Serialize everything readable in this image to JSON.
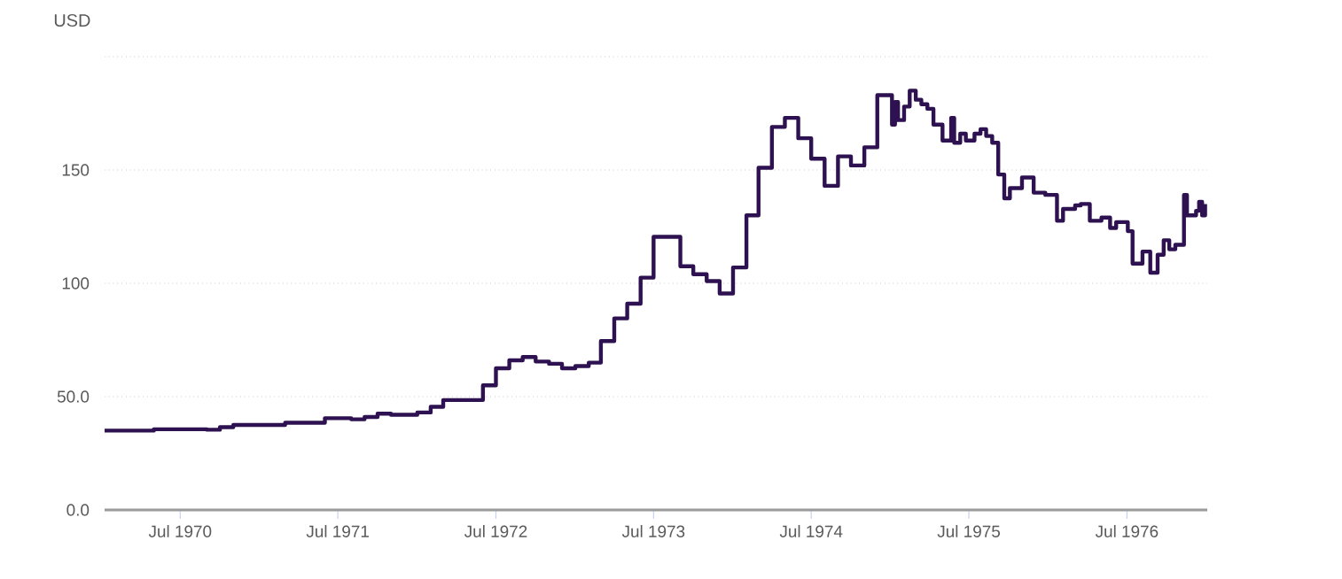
{
  "chart_data": {
    "type": "step",
    "ylabel": "USD",
    "color": "#2d1150",
    "x": [
      "1970-01-07",
      "1970-05-01",
      "1970-09-01",
      "1970-10-01",
      "1970-11-01",
      "1971-03-01",
      "1971-06-01",
      "1971-08-01",
      "1971-09-01",
      "1971-10-01",
      "1971-11-01",
      "1972-01-01",
      "1972-02-01",
      "1972-03-01",
      "1972-06-01",
      "1972-07-01",
      "1972-08-01",
      "1972-09-01",
      "1972-10-01",
      "1972-11-01",
      "1972-12-01",
      "1973-01-01",
      "1973-02-01",
      "1973-03-01",
      "1973-04-01",
      "1973-05-01",
      "1973-06-01",
      "1973-07-01",
      "1973-09-01",
      "1973-10-01",
      "1973-11-01",
      "1973-12-01",
      "1974-01-01",
      "1974-02-01",
      "1974-03-01",
      "1974-04-01",
      "1974-05-01",
      "1974-06-01",
      "1974-07-01",
      "1974-08-01",
      "1974-09-01",
      "1974-10-01",
      "1974-11-01",
      "1974-12-01",
      "1975-01-04",
      "1975-01-11",
      "1975-01-18",
      "1975-02-01",
      "1975-02-14",
      "1975-02-28",
      "1975-03-13",
      "1975-03-27",
      "1975-04-10",
      "1975-05-01",
      "1975-05-21",
      "1975-05-28",
      "1975-06-11",
      "1975-06-24",
      "1975-07-14",
      "1975-07-28",
      "1975-08-10",
      "1975-08-24",
      "1975-09-07",
      "1975-09-21",
      "1975-10-04",
      "1975-11-01",
      "1975-11-28",
      "1975-12-25",
      "1976-01-21",
      "1976-02-04",
      "1976-03-03",
      "1976-03-16",
      "1976-04-06",
      "1976-05-03",
      "1976-05-23",
      "1976-06-06",
      "1976-07-03",
      "1976-07-14",
      "1976-08-06",
      "1976-08-24",
      "1976-09-10",
      "1976-09-24",
      "1976-10-07",
      "1976-10-21",
      "1976-11-10",
      "1976-11-17",
      "1976-12-08",
      "1976-12-15",
      "1976-12-22",
      "1976-12-29"
    ],
    "values": [
      35.0,
      35.6,
      35.4,
      36.5,
      37.5,
      38.5,
      40.5,
      40.0,
      41.0,
      42.5,
      42.0,
      43.0,
      45.5,
      48.5,
      55,
      62.5,
      66,
      67.5,
      65.5,
      64.5,
      62.5,
      63.5,
      65,
      74.5,
      84.5,
      91,
      102.5,
      120.5,
      107.5,
      104,
      101,
      95.5,
      107,
      130,
      151,
      169,
      173,
      164,
      155,
      143,
      156,
      152,
      160,
      183,
      170,
      180,
      172,
      178,
      185,
      181,
      179,
      177,
      170,
      163,
      173,
      162,
      166,
      163,
      166,
      168,
      165,
      162,
      148,
      137.5,
      142,
      146.7,
      140,
      139,
      127.6,
      132.8,
      134.4,
      135,
      127.6,
      129,
      124.4,
      127,
      123,
      108.7,
      114,
      104.7,
      112.6,
      119,
      115,
      117,
      139,
      130,
      132,
      136,
      130,
      135
    ],
    "xlim": [
      "1970-01-07",
      "1977-01-03"
    ],
    "xticks": [
      {
        "value": "1970-07-01",
        "label": "Jul 1970"
      },
      {
        "value": "1971-07-01",
        "label": "Jul 1971"
      },
      {
        "value": "1972-07-01",
        "label": "Jul 1972"
      },
      {
        "value": "1973-07-01",
        "label": "Jul 1973"
      },
      {
        "value": "1974-07-01",
        "label": "Jul 1974"
      },
      {
        "value": "1975-07-01",
        "label": "Jul 1975"
      },
      {
        "value": "1976-07-01",
        "label": "Jul 1976"
      }
    ],
    "ylim": [
      0,
      200
    ],
    "yticks": [
      {
        "value": 0,
        "label": "0.0"
      },
      {
        "value": 50,
        "label": "50.0"
      },
      {
        "value": 100,
        "label": "100"
      },
      {
        "value": 150,
        "label": "150"
      },
      {
        "value": 200,
        "label": null
      }
    ],
    "grid": "y"
  }
}
